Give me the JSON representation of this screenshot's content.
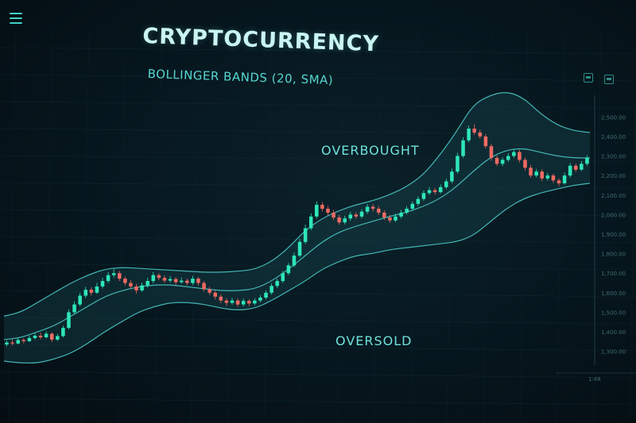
{
  "header": {
    "title": "CRYPTOCURRENCY",
    "subtitle": "BOLLINGER BANDS (20, SMA)"
  },
  "annotations": {
    "overbought": "OVERBOUGHT",
    "oversold": "OVERSOLD"
  },
  "icons": {
    "menu": "hamburger-menu-icon",
    "tool1": "panel-icon",
    "tool2": "window-icon"
  },
  "colors": {
    "background": "#06141b",
    "up": "#2ee6b8",
    "down": "#ef6a63",
    "band": "#49c6c4",
    "title": "#c9f4f2"
  },
  "chart_data": {
    "type": "line",
    "title": "CRYPTOCURRENCY",
    "subtitle": "BOLLINGER BANDS (20, SMA)",
    "indicator": "Bollinger Bands (20, SMA)",
    "y_ticks": [
      "2,500.00",
      "2,400.00",
      "2,300.00",
      "2,200.00",
      "2,100.00",
      "2,000.00",
      "1,900.00",
      "1,800.00",
      "1,700.00",
      "1,600.00",
      "1,500.00",
      "1,400.00",
      "1,300.00"
    ],
    "ylim": [
      1250,
      2550
    ],
    "x_tick_labels": [
      "1:48"
    ],
    "grid": true,
    "annotations": [
      "OVERBOUGHT",
      "OVERSOLD"
    ],
    "candles": [
      [
        1335,
        1345,
        1355,
        1325
      ],
      [
        1345,
        1340,
        1362,
        1330
      ],
      [
        1340,
        1358,
        1370,
        1335
      ],
      [
        1358,
        1352,
        1368,
        1340
      ],
      [
        1352,
        1368,
        1380,
        1348
      ],
      [
        1368,
        1380,
        1392,
        1360
      ],
      [
        1380,
        1372,
        1396,
        1362
      ],
      [
        1372,
        1390,
        1402,
        1366
      ],
      [
        1390,
        1360,
        1398,
        1348
      ],
      [
        1360,
        1378,
        1390,
        1352
      ],
      [
        1378,
        1420,
        1432,
        1372
      ],
      [
        1420,
        1500,
        1515,
        1412
      ],
      [
        1500,
        1540,
        1556,
        1490
      ],
      [
        1540,
        1585,
        1600,
        1530
      ],
      [
        1585,
        1615,
        1630,
        1572
      ],
      [
        1615,
        1600,
        1628,
        1586
      ],
      [
        1600,
        1632,
        1650,
        1594
      ],
      [
        1632,
        1660,
        1676,
        1622
      ],
      [
        1660,
        1690,
        1706,
        1650
      ],
      [
        1690,
        1700,
        1722,
        1676
      ],
      [
        1700,
        1672,
        1712,
        1660
      ],
      [
        1672,
        1650,
        1684,
        1636
      ],
      [
        1650,
        1632,
        1664,
        1620
      ],
      [
        1632,
        1612,
        1646,
        1596
      ],
      [
        1612,
        1638,
        1652,
        1604
      ],
      [
        1638,
        1660,
        1676,
        1626
      ],
      [
        1660,
        1690,
        1706,
        1648
      ],
      [
        1690,
        1676,
        1700,
        1664
      ],
      [
        1676,
        1662,
        1690,
        1650
      ],
      [
        1662,
        1670,
        1686,
        1652
      ],
      [
        1670,
        1654,
        1680,
        1640
      ],
      [
        1654,
        1662,
        1678,
        1646
      ],
      [
        1662,
        1650,
        1672,
        1638
      ],
      [
        1650,
        1672,
        1686,
        1640
      ],
      [
        1672,
        1650,
        1680,
        1636
      ],
      [
        1650,
        1618,
        1660,
        1606
      ],
      [
        1618,
        1600,
        1630,
        1588
      ],
      [
        1600,
        1580,
        1612,
        1566
      ],
      [
        1580,
        1560,
        1592,
        1546
      ],
      [
        1560,
        1548,
        1572,
        1532
      ],
      [
        1548,
        1560,
        1574,
        1538
      ],
      [
        1560,
        1540,
        1572,
        1528
      ],
      [
        1540,
        1558,
        1570,
        1530
      ],
      [
        1558,
        1545,
        1566,
        1532
      ],
      [
        1545,
        1560,
        1572,
        1536
      ],
      [
        1560,
        1575,
        1588,
        1550
      ],
      [
        1575,
        1600,
        1612,
        1566
      ],
      [
        1600,
        1635,
        1648,
        1590
      ],
      [
        1635,
        1660,
        1672,
        1624
      ],
      [
        1660,
        1700,
        1712,
        1650
      ],
      [
        1700,
        1740,
        1752,
        1690
      ],
      [
        1740,
        1790,
        1806,
        1730
      ],
      [
        1790,
        1860,
        1876,
        1780
      ],
      [
        1860,
        1930,
        1948,
        1850
      ],
      [
        1930,
        1990,
        2006,
        1920
      ],
      [
        1990,
        2050,
        2068,
        1978
      ],
      [
        2050,
        2030,
        2064,
        2016
      ],
      [
        2030,
        2010,
        2044,
        1996
      ],
      [
        2010,
        1985,
        2024,
        1972
      ],
      [
        1985,
        1960,
        1998,
        1948
      ],
      [
        1960,
        1980,
        1994,
        1950
      ],
      [
        1980,
        2000,
        2014,
        1968
      ],
      [
        2000,
        1990,
        2012,
        1978
      ],
      [
        1990,
        2015,
        2028,
        1980
      ],
      [
        2015,
        2040,
        2054,
        2004
      ],
      [
        2040,
        2030,
        2052,
        2016
      ],
      [
        2030,
        2010,
        2044,
        1998
      ],
      [
        2010,
        1985,
        2022,
        1972
      ],
      [
        1985,
        1970,
        1998,
        1958
      ],
      [
        1970,
        1990,
        2004,
        1962
      ],
      [
        1990,
        2010,
        2024,
        1980
      ],
      [
        2010,
        2030,
        2044,
        2000
      ],
      [
        2030,
        2055,
        2068,
        2020
      ],
      [
        2055,
        2080,
        2094,
        2044
      ],
      [
        2080,
        2110,
        2124,
        2070
      ],
      [
        2110,
        2125,
        2140,
        2100
      ],
      [
        2125,
        2115,
        2136,
        2102
      ],
      [
        2115,
        2140,
        2154,
        2108
      ],
      [
        2140,
        2170,
        2184,
        2130
      ],
      [
        2170,
        2220,
        2236,
        2160
      ],
      [
        2220,
        2300,
        2316,
        2210
      ],
      [
        2300,
        2380,
        2396,
        2290
      ],
      [
        2380,
        2440,
        2456,
        2370
      ],
      [
        2440,
        2420,
        2462,
        2408
      ],
      [
        2420,
        2400,
        2434,
        2388
      ],
      [
        2400,
        2350,
        2412,
        2338
      ],
      [
        2350,
        2290,
        2362,
        2276
      ],
      [
        2290,
        2260,
        2302,
        2248
      ],
      [
        2260,
        2280,
        2292,
        2248
      ],
      [
        2280,
        2300,
        2314,
        2270
      ],
      [
        2300,
        2320,
        2334,
        2290
      ],
      [
        2320,
        2280,
        2332,
        2266
      ],
      [
        2280,
        2240,
        2292,
        2226
      ],
      [
        2240,
        2200,
        2254,
        2188
      ],
      [
        2200,
        2220,
        2234,
        2190
      ],
      [
        2220,
        2185,
        2232,
        2172
      ],
      [
        2185,
        2200,
        2214,
        2174
      ],
      [
        2200,
        2175,
        2210,
        2162
      ],
      [
        2175,
        2160,
        2186,
        2146
      ],
      [
        2160,
        2200,
        2214,
        2152
      ],
      [
        2200,
        2250,
        2264,
        2190
      ],
      [
        2250,
        2230,
        2262,
        2218
      ],
      [
        2230,
        2260,
        2274,
        2222
      ],
      [
        2260,
        2290,
        2304,
        2250
      ]
    ],
    "series": [
      {
        "name": "upper",
        "values": [
          1480,
          1500,
          1550,
          1600,
          1650,
          1690,
          1720,
          1730,
          1725,
          1720,
          1715,
          1710,
          1705,
          1705,
          1710,
          1720,
          1760,
          1830,
          1920,
          1980,
          2020,
          2050,
          2070,
          2100,
          2140,
          2200,
          2300,
          2420,
          2560,
          2610,
          2630,
          2600,
          2520,
          2460,
          2430,
          2420
        ]
      },
      {
        "name": "middle",
        "values": [
          1360,
          1370,
          1400,
          1430,
          1480,
          1530,
          1580,
          1610,
          1630,
          1640,
          1640,
          1630,
          1620,
          1610,
          1610,
          1620,
          1660,
          1720,
          1790,
          1860,
          1910,
          1940,
          1965,
          1990,
          2010,
          2040,
          2080,
          2140,
          2220,
          2290,
          2330,
          2340,
          2320,
          2300,
          2290,
          2290
        ]
      },
      {
        "name": "lower",
        "values": [
          1250,
          1240,
          1240,
          1260,
          1290,
          1340,
          1400,
          1450,
          1500,
          1530,
          1550,
          1550,
          1540,
          1520,
          1510,
          1520,
          1560,
          1610,
          1660,
          1720,
          1760,
          1790,
          1800,
          1820,
          1830,
          1840,
          1850,
          1860,
          1890,
          1960,
          2030,
          2080,
          2110,
          2130,
          2150,
          2160
        ]
      }
    ]
  }
}
